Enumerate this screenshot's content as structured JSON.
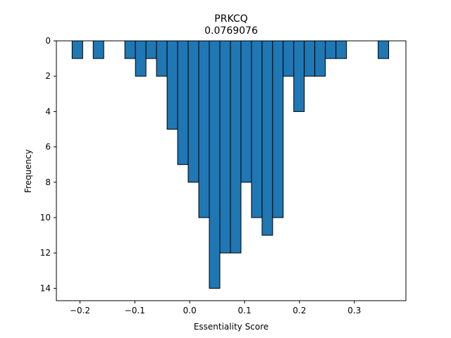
{
  "chart_data": {
    "type": "bar",
    "title": "PRKCQ",
    "subtitle": "0.0769076",
    "xlabel": "Essentiality Score",
    "ylabel": "Frequency",
    "y_axis_inverted": true,
    "xlim": [
      -0.243,
      0.394
    ],
    "ylim": [
      14.7,
      0
    ],
    "xticks": [
      -0.2,
      -0.1,
      0.0,
      0.1,
      0.2,
      0.3
    ],
    "xtick_labels": [
      "−0.2",
      "−0.1",
      "0.0",
      "0.1",
      "0.2",
      "0.3"
    ],
    "yticks": [
      0,
      2,
      4,
      6,
      8,
      10,
      12,
      14
    ],
    "ytick_labels": [
      "0",
      "2",
      "4",
      "6",
      "8",
      "10",
      "12",
      "14"
    ],
    "bin_width": 0.01923,
    "bin_starts": [
      -0.2143,
      -0.1951,
      -0.1759,
      -0.1566,
      -0.1374,
      -0.1182,
      -0.0989,
      -0.0797,
      -0.0605,
      -0.0412,
      -0.022,
      -0.0028,
      0.0165,
      0.0357,
      0.0549,
      0.0742,
      0.0934,
      0.1126,
      0.1319,
      0.1511,
      0.1703,
      0.1896,
      0.2088,
      0.228,
      0.2473,
      0.2665,
      0.2857,
      0.3049,
      0.3242,
      0.3434
    ],
    "values": [
      1,
      0,
      1,
      0,
      0,
      1,
      2,
      1,
      2,
      5,
      7,
      8,
      10,
      14,
      12,
      12,
      8,
      10,
      11,
      10,
      2,
      4,
      2,
      2,
      1,
      1,
      0,
      0,
      0,
      1
    ],
    "bar_color": "#1f77b4",
    "edge_color": "#000000",
    "grid": false
  }
}
